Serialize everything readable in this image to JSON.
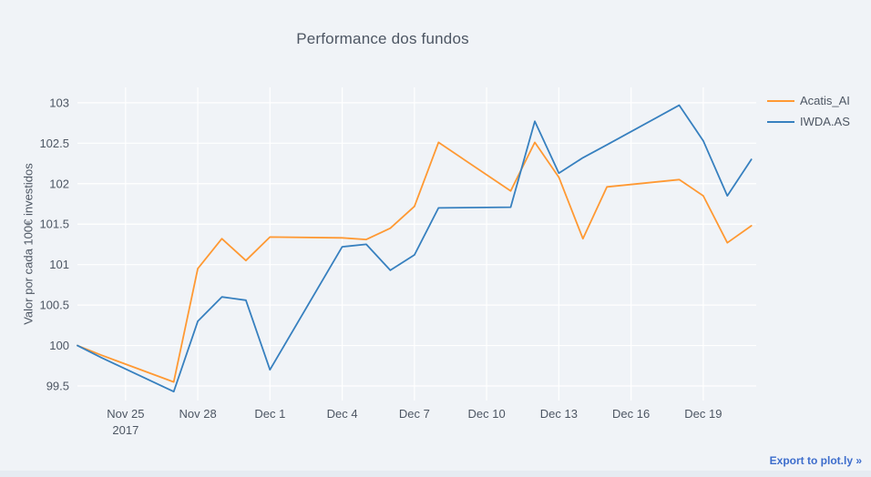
{
  "page": {
    "background_color": "#f0f3f7",
    "grid_color": "#ffffff",
    "text_color": "#4d5663",
    "footer_strip_color": "#e6ebf2",
    "export_link_color": "#3d6dcc"
  },
  "export_link": "Export to plot.ly »",
  "chart_data": {
    "type": "line",
    "title": "Performance dos fundos",
    "xlabel": "",
    "ylabel": "Valor por cada 100€ investidos",
    "x_year_label": "2017",
    "x_tick_labels": [
      "Nov 25",
      "Nov 28",
      "Dec 1",
      "Dec 4",
      "Dec 7",
      "Dec 10",
      "Dec 13",
      "Dec 16",
      "Dec 19"
    ],
    "x_tick_days": [
      2,
      5,
      8,
      11,
      14,
      17,
      20,
      23,
      26
    ],
    "y_ticks": [
      99.5,
      100,
      100.5,
      101,
      101.5,
      102,
      102.5,
      103
    ],
    "ylim": [
      99.32,
      103.19
    ],
    "xlim_days": [
      0,
      28.2
    ],
    "grid": true,
    "legend_position": "top-right",
    "categories": [
      "Nov 23",
      "Nov 24",
      "Nov 27",
      "Nov 28",
      "Nov 29",
      "Nov 30",
      "Dec 1",
      "Dec 4",
      "Dec 5",
      "Dec 6",
      "Dec 7",
      "Dec 8",
      "Dec 11",
      "Dec 12",
      "Dec 13",
      "Dec 14",
      "Dec 15",
      "Dec 18",
      "Dec 19",
      "Dec 20",
      "Dec 21"
    ],
    "day_offsets": [
      0,
      1,
      4,
      5,
      6,
      7,
      8,
      11,
      12,
      13,
      14,
      15,
      18,
      19,
      20,
      21,
      22,
      25,
      26,
      27,
      28
    ],
    "series": [
      {
        "name": "Acatis_AI",
        "color": "#ff9933",
        "values": [
          100,
          99.88,
          99.55,
          100.95,
          101.32,
          101.05,
          101.34,
          101.33,
          101.31,
          101.45,
          101.72,
          102.51,
          101.91,
          102.51,
          102.08,
          101.32,
          101.96,
          102.05,
          101.85,
          101.27,
          101.48
        ]
      },
      {
        "name": "IWDA.AS",
        "color": "#3780bf",
        "values": [
          100,
          99.85,
          99.43,
          100.3,
          100.6,
          100.56,
          99.7,
          101.22,
          101.25,
          100.93,
          101.12,
          101.7,
          101.71,
          102.77,
          102.13,
          102.32,
          102.48,
          102.97,
          102.53,
          101.85,
          102.3
        ]
      }
    ]
  }
}
